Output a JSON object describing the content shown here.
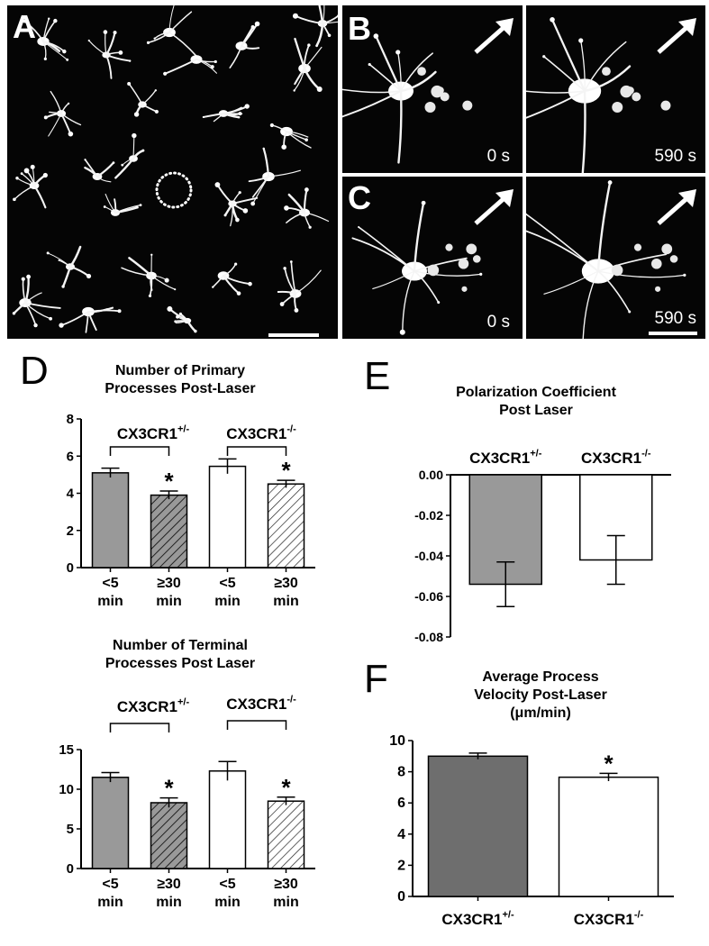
{
  "panels": {
    "A": {
      "letter": "A"
    },
    "B": {
      "letter": "B",
      "time_before": "0 s",
      "time_after": "590 s"
    },
    "C": {
      "letter": "C",
      "time_before": "0 s",
      "time_after": "590 s"
    },
    "D": {
      "letter": "D"
    },
    "E": {
      "letter": "E"
    },
    "F": {
      "letter": "F"
    }
  },
  "colors": {
    "gray_bar": "#999999",
    "dark_bar": "#6e6e6e",
    "open_bar": "#ffffff",
    "hatch": "#222222"
  },
  "chart_data": [
    {
      "id": "D1",
      "type": "bar",
      "title_line1": "Number of Primary",
      "title_line2": "Processes Post-Laser",
      "group_labels": [
        {
          "base": "CX3CR1",
          "sup": "+/-"
        },
        {
          "base": "CX3CR1",
          "sup": "-/-"
        }
      ],
      "categories": [
        [
          "<5",
          "min"
        ],
        [
          "≥30",
          "min"
        ],
        [
          "<5",
          "min"
        ],
        [
          "≥30",
          "min"
        ]
      ],
      "values": [
        5.1,
        3.9,
        5.45,
        4.5
      ],
      "errors": [
        0.25,
        0.22,
        0.4,
        0.2
      ],
      "fills": [
        "gray",
        "gray-hatch",
        "white",
        "white-hatch"
      ],
      "significant": [
        "",
        "*",
        "",
        "*"
      ],
      "ylim": [
        0,
        8
      ],
      "yticks": [
        0,
        2,
        4,
        6,
        8
      ]
    },
    {
      "id": "D2",
      "type": "bar",
      "title_line1": "Number of Terminal",
      "title_line2": "Processes Post Laser",
      "group_labels": [
        {
          "base": "CX3CR1",
          "sup": "+/-"
        },
        {
          "base": "CX3CR1",
          "sup": "-/-"
        }
      ],
      "categories": [
        [
          "<5",
          "min"
        ],
        [
          "≥30",
          "min"
        ],
        [
          "<5",
          "min"
        ],
        [
          "≥30",
          "min"
        ]
      ],
      "values": [
        11.5,
        8.3,
        12.3,
        8.5
      ],
      "errors": [
        0.6,
        0.6,
        1.2,
        0.5
      ],
      "fills": [
        "gray",
        "gray-hatch",
        "white",
        "white-hatch"
      ],
      "significant": [
        "",
        "*",
        "",
        "*"
      ],
      "ylim": [
        0,
        15
      ],
      "yticks": [
        0,
        5,
        10,
        15
      ]
    },
    {
      "id": "E",
      "type": "bar",
      "title_line1": "Polarization Coefficient",
      "title_line2": "Post Laser",
      "categories": [
        {
          "base": "CX3CR1",
          "sup": "+/-"
        },
        {
          "base": "CX3CR1",
          "sup": "-/-"
        }
      ],
      "values": [
        -0.054,
        -0.042
      ],
      "errors": [
        0.011,
        0.012
      ],
      "fills": [
        "gray",
        "white"
      ],
      "ylim": [
        -0.08,
        0.0
      ],
      "yticks": [
        "0.00",
        "-0.02",
        "-0.04",
        "-0.06",
        "-0.08"
      ]
    },
    {
      "id": "F",
      "type": "bar",
      "title_line1": "Average Process",
      "title_line2": "Velocity Post-Laser",
      "title_line3": "(μm/min)",
      "categories": [
        {
          "base": "CX3CR1",
          "sup": "+/-"
        },
        {
          "base": "CX3CR1",
          "sup": "-/-"
        }
      ],
      "values": [
        9.0,
        7.65
      ],
      "errors": [
        0.2,
        0.25
      ],
      "fills": [
        "dark",
        "white"
      ],
      "significant": [
        "",
        "*"
      ],
      "ylim": [
        0,
        10
      ],
      "yticks": [
        0,
        2,
        4,
        6,
        8,
        10
      ]
    }
  ]
}
